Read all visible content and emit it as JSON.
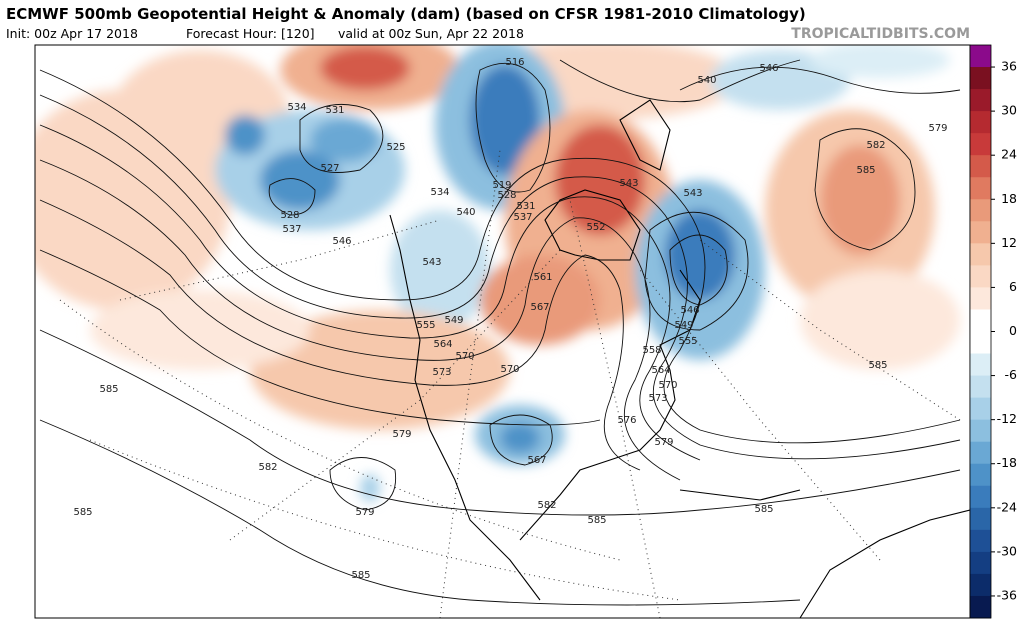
{
  "header": {
    "title": "ECMWF 500mb Geopotential Height & Anomaly (dam) (based on CFSR 1981-2010 Climatology)",
    "init": "Init: 00z Apr 17 2018",
    "forecast": "Forecast Hour: [120]",
    "valid": "valid at 00z Sun, Apr 22 2018",
    "source": "TROPICALTIDBITS.COM"
  },
  "colorbar": {
    "lim": [
      -39,
      39
    ],
    "ticks": [
      36,
      30,
      24,
      18,
      12,
      6,
      0,
      -6,
      -12,
      -18,
      -24,
      -30,
      -36
    ],
    "colors": [
      "#8b0a8b",
      "#7a1020",
      "#9a1a2a",
      "#b52a30",
      "#c83a3a",
      "#d45a4a",
      "#e07a60",
      "#e99a7a",
      "#f0b090",
      "#f6c8ac",
      "#fad8c4",
      "#fde8dc",
      "#ffffff",
      "#ffffff",
      "#dceef6",
      "#c4e0ef",
      "#a8d0e8",
      "#8cbfdf",
      "#6aa8d4",
      "#4e92c8",
      "#3a7cbc",
      "#2a66a8",
      "#1e5096",
      "#143e82",
      "#0c2c6a",
      "#081a50"
    ]
  },
  "contour_labels": [
    534,
    531,
    525,
    527,
    528,
    537,
    546,
    516,
    540,
    546,
    579,
    582,
    585,
    543,
    543,
    534,
    540,
    531,
    537,
    552,
    519,
    528,
    543,
    561,
    567,
    549,
    555,
    564,
    570,
    573,
    570,
    546,
    549,
    555,
    558,
    564,
    570,
    573,
    576,
    579,
    579,
    567,
    582,
    579,
    582,
    585,
    585,
    585,
    585,
    585,
    585
  ]
}
